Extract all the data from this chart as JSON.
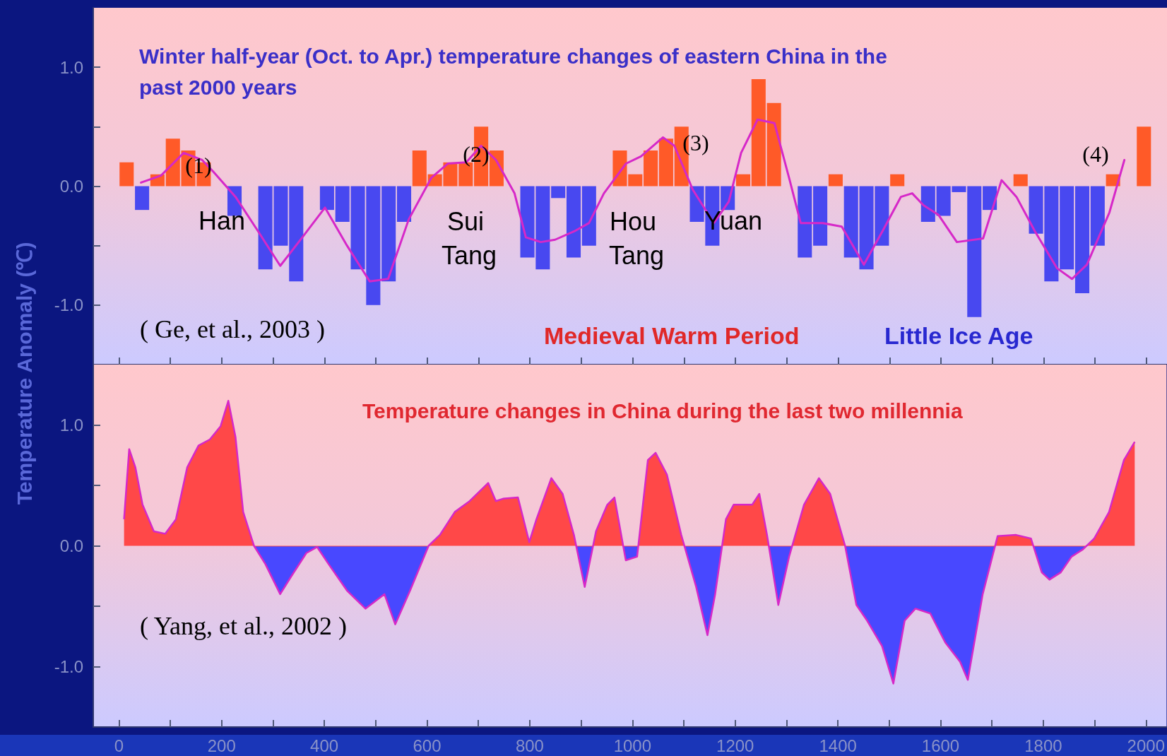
{
  "chart_data": [
    {
      "type": "bar",
      "title": "Winter half-year (Oct. to Apr.) temperature changes of eastern China in the past 2000 years",
      "ylabel": "Temperature Anomaly (℃)",
      "x": [
        15,
        45,
        75,
        105,
        135,
        165,
        195,
        225,
        255,
        285,
        315,
        345,
        375,
        405,
        435,
        465,
        495,
        525,
        555,
        585,
        615,
        645,
        675,
        705,
        735,
        765,
        795,
        825,
        855,
        885,
        915,
        945,
        975,
        1005,
        1035,
        1065,
        1095,
        1125,
        1155,
        1185,
        1215,
        1245,
        1275,
        1305,
        1335,
        1365,
        1395,
        1425,
        1455,
        1485,
        1515,
        1545,
        1575,
        1605,
        1635,
        1665,
        1695,
        1725,
        1755,
        1785,
        1815,
        1845,
        1875,
        1905,
        1935,
        1965,
        1995
      ],
      "series": [
        {
          "values": [
            0.2,
            -0.2,
            0.1,
            0.4,
            0.3,
            0.2,
            0,
            -0.25,
            0,
            -0.7,
            -0.5,
            -0.8,
            0,
            -0.2,
            -0.3,
            -0.7,
            -1.0,
            -0.8,
            -0.3,
            0.3,
            0.1,
            0.2,
            0.2,
            0.5,
            0.3,
            0,
            -0.6,
            -0.7,
            -0.1,
            -0.6,
            -0.5,
            0,
            0.3,
            0.1,
            0.3,
            0.4,
            0.5,
            -0.3,
            -0.5,
            -0.2,
            0.1,
            0.9,
            0.7,
            0,
            -0.6,
            -0.5,
            0.1,
            -0.6,
            -0.7,
            -0.5,
            0.1,
            0,
            -0.3,
            -0.25,
            -0.05,
            -1.1,
            -0.2,
            0,
            0.1,
            -0.4,
            -0.8,
            -0.7,
            -0.9,
            -0.5,
            0.1,
            0,
            0.5
          ],
          "colors": [
            "#ff5a28",
            "#4848f0",
            "#ff5a28",
            "#ff5a28",
            "#ff5a28",
            "#ff5a28",
            "#ff5a28",
            "#4848f0",
            "#ff5a28",
            "#4848f0",
            "#4848f0",
            "#4848f0",
            "#ff5a28",
            "#4848f0",
            "#4848f0",
            "#4848f0",
            "#4848f0",
            "#4848f0",
            "#4848f0",
            "#ff5a28",
            "#ff5a28",
            "#ff5a28",
            "#ff5a28",
            "#ff5a28",
            "#ff5a28",
            "#ff5a28",
            "#4848f0",
            "#4848f0",
            "#4848f0",
            "#4848f0",
            "#4848f0",
            "#ff5a28",
            "#ff5a28",
            "#ff5a28",
            "#ff5a28",
            "#ff5a28",
            "#ff5a28",
            "#4848f0",
            "#4848f0",
            "#4848f0",
            "#ff5a28",
            "#ff5a28",
            "#ff5a28",
            "#ff5a28",
            "#4848f0",
            "#4848f0",
            "#ff5a28",
            "#4848f0",
            "#4848f0",
            "#4848f0",
            "#ff5a28",
            "#ff5a28",
            "#4848f0",
            "#4848f0",
            "#4848f0",
            "#4848f0",
            "#4848f0",
            "#ff5a28",
            "#ff5a28",
            "#4848f0",
            "#4848f0",
            "#4848f0",
            "#4848f0",
            "#4848f0",
            "#ff5a28",
            "#ff5a28",
            "#ff5a28"
          ]
        },
        {
          "type": "line",
          "color": "#d628c8",
          "x": [
            43,
            82,
            126,
            162,
            184,
            227,
            271,
            314,
            357,
            401,
            444,
            488,
            524,
            564,
            608,
            640,
            676,
            705,
            734,
            770,
            792,
            821,
            849,
            886,
            915,
            944,
            987,
            1016,
            1059,
            1081,
            1117,
            1158,
            1187,
            1211,
            1243,
            1276,
            1305,
            1327,
            1370,
            1407,
            1450,
            1486,
            1522,
            1544,
            1566,
            1595,
            1631,
            1682,
            1718,
            1747,
            1783,
            1826,
            1855,
            1884,
            1928,
            1957
          ],
          "values": [
            0.03,
            0.09,
            0.28,
            0.22,
            0.12,
            -0.09,
            -0.38,
            -0.67,
            -0.43,
            -0.18,
            -0.5,
            -0.8,
            -0.78,
            -0.28,
            0.07,
            0.19,
            0.2,
            0.34,
            0.22,
            -0.06,
            -0.43,
            -0.47,
            -0.45,
            -0.38,
            -0.31,
            -0.06,
            0.19,
            0.25,
            0.41,
            0.34,
            -0.03,
            -0.31,
            -0.13,
            0.28,
            0.56,
            0.53,
            0.06,
            -0.31,
            -0.31,
            -0.34,
            -0.66,
            -0.38,
            -0.09,
            -0.06,
            -0.16,
            -0.24,
            -0.47,
            -0.44,
            0.05,
            -0.09,
            -0.38,
            -0.69,
            -0.78,
            -0.66,
            -0.22,
            0.22
          ]
        }
      ],
      "annotations": [
        "( Ge, et al., 2003 )",
        "Medieval Warm Period",
        "Little Ice Age",
        "(1)",
        "Han",
        "(2)",
        "Sui Tang",
        "(3)",
        "Hou Tang",
        "Yuan",
        "(4)"
      ],
      "xlim": [
        -50,
        2040
      ],
      "xticks": [
        {
          "value": 0,
          "label": null
        },
        {
          "value": 100,
          "label": null
        },
        {
          "value": 200,
          "label": null
        },
        {
          "value": 300,
          "label": null
        },
        {
          "value": 400,
          "label": null
        },
        {
          "value": 500,
          "label": null
        },
        {
          "value": 600,
          "label": null
        },
        {
          "value": 700,
          "label": null
        },
        {
          "value": 800,
          "label": null
        },
        {
          "value": 900,
          "label": null
        },
        {
          "value": 1000,
          "label": null
        },
        {
          "value": 1100,
          "label": null
        },
        {
          "value": 1200,
          "label": null
        },
        {
          "value": 1300,
          "label": null
        },
        {
          "value": 1400,
          "label": null
        },
        {
          "value": 1500,
          "label": null
        },
        {
          "value": 1600,
          "label": null
        },
        {
          "value": 1700,
          "label": null
        },
        {
          "value": 1800,
          "label": null
        },
        {
          "value": 1900,
          "label": null
        },
        {
          "value": 2000,
          "label": null
        }
      ],
      "ylim": [
        -1.5,
        1.5
      ],
      "yticks": [
        {
          "value": -1,
          "label": "-1.0"
        },
        {
          "value": -0.5,
          "label": null
        },
        {
          "value": 0,
          "label": "0.0"
        },
        {
          "value": 0.5,
          "label": null
        },
        {
          "value": 1,
          "label": "1.0"
        }
      ],
      "tick_labels": "y",
      "grid": false,
      "marker": "none"
    },
    {
      "type": "area",
      "title": "Temperature changes in China during the last two millennia",
      "series": [
        {
          "color": "#d628c8",
          "colors": [
            "#ff4848",
            "#ff4848",
            "#ff4848",
            "#ff4848",
            "#ff4848",
            "#ff4848",
            "#ff4848",
            "#ff4848",
            "#ff4848",
            "#ff4848",
            "#ff4848",
            "#ff4848",
            "#ff4848",
            "#ff4848",
            "#ff4848",
            "#4848ff",
            "#4848ff",
            "#4848ff",
            "#4848ff",
            "#4848ff",
            "#4848ff",
            "#4848ff",
            "#4848ff",
            "#4848ff",
            "#4848ff",
            "#4848ff",
            "#ff4848",
            "#ff4848",
            "#ff4848",
            "#ff4848",
            "#ff4848",
            "#ff4848",
            "#ff4848",
            "#ff4848",
            "#ff4848",
            "#ff4848",
            "#ff4848",
            "#ff4848",
            "#ff4848",
            "#4848ff",
            "#ff4848",
            "#ff4848",
            "#ff4848",
            "#4848ff",
            "#4848ff",
            "#ff4848",
            "#ff4848",
            "#ff4848",
            "#ff4848",
            "#4848ff",
            "#4848ff",
            "#4848ff",
            "#ff4848",
            "#ff4848",
            "#ff4848",
            "#ff4848",
            "#ff4848",
            "#4848ff",
            "#4848ff",
            "#ff4848",
            "#ff4848",
            "#ff4848",
            "#ff4848",
            "#4848ff",
            "#4848ff",
            "#4848ff",
            "#4848ff",
            "#4848ff",
            "#4848ff",
            "#4848ff",
            "#4848ff",
            "#4848ff",
            "#4848ff",
            "#4848ff",
            "#ff4848",
            "#ff4848",
            "#ff4848",
            "#4848ff",
            "#4848ff",
            "#4848ff",
            "#4848ff",
            "#4848ff",
            "#ff4848",
            "#ff4848",
            "#ff4848",
            "#ff4848"
          ],
          "x": [
            10,
            20,
            32,
            46,
            68,
            90,
            111,
            133,
            155,
            177,
            198,
            213,
            227,
            242,
            263,
            285,
            314,
            336,
            365,
            386,
            408,
            444,
            480,
            517,
            538,
            567,
            603,
            625,
            654,
            683,
            719,
            734,
            748,
            777,
            799,
            813,
            842,
            864,
            886,
            907,
            929,
            951,
            965,
            987,
            1009,
            1030,
            1045,
            1067,
            1095,
            1124,
            1146,
            1161,
            1182,
            1197,
            1233,
            1247,
            1262,
            1284,
            1305,
            1334,
            1363,
            1385,
            1414,
            1436,
            1457,
            1486,
            1508,
            1530,
            1551,
            1580,
            1609,
            1638,
            1653,
            1682,
            1711,
            1747,
            1776,
            1797,
            1812,
            1834,
            1855,
            1877,
            1899,
            1928,
            1957,
            1978
          ],
          "values": [
            0.22,
            0.8,
            0.65,
            0.34,
            0.12,
            0.1,
            0.22,
            0.65,
            0.83,
            0.88,
            0.99,
            1.2,
            0.9,
            0.28,
            0,
            -0.15,
            -0.4,
            -0.25,
            -0.06,
            -0.01,
            -0.15,
            -0.37,
            -0.52,
            -0.4,
            -0.65,
            -0.37,
            0,
            0.09,
            0.28,
            0.37,
            0.52,
            0.37,
            0.39,
            0.4,
            0.03,
            0.22,
            0.56,
            0.43,
            0.09,
            -0.34,
            0.12,
            0.34,
            0.4,
            -0.12,
            -0.09,
            0.71,
            0.77,
            0.59,
            0.09,
            -0.34,
            -0.74,
            -0.4,
            0.22,
            0.34,
            0.34,
            0.43,
            0.09,
            -0.49,
            -0.09,
            0.34,
            0.56,
            0.43,
            0,
            -0.49,
            -0.62,
            -0.83,
            -1.14,
            -0.62,
            -0.52,
            -0.56,
            -0.8,
            -0.96,
            -1.11,
            -0.4,
            0.08,
            0.09,
            0.06,
            -0.22,
            -0.28,
            -0.22,
            -0.09,
            -0.03,
            0.06,
            0.28,
            0.71,
            0.86
          ]
        }
      ],
      "annotations": [
        "( Yang, et al., 2002 )"
      ],
      "xlim": [
        -50,
        2040
      ],
      "xticks": [
        0,
        {
          "value": 100,
          "label": null
        },
        200,
        {
          "value": 300,
          "label": null
        },
        400,
        {
          "value": 500,
          "label": null
        },
        600,
        {
          "value": 700,
          "label": null
        },
        800,
        {
          "value": 900,
          "label": null
        },
        1000,
        {
          "value": 1100,
          "label": null
        },
        1200,
        {
          "value": 1300,
          "label": null
        },
        1400,
        {
          "value": 1500,
          "label": null
        },
        1600,
        {
          "value": 1700,
          "label": null
        },
        1800,
        {
          "value": 1900,
          "label": null
        },
        2000
      ],
      "ylim": [
        -1.5,
        1.5
      ],
      "yticks": [
        {
          "value": -1,
          "label": "-1.0"
        },
        {
          "value": -0.5,
          "label": null
        },
        {
          "value": 0,
          "label": "0.0"
        },
        {
          "value": 0.5,
          "label": null
        },
        {
          "value": 1,
          "label": "1.0"
        }
      ],
      "grid": false,
      "marker": "none"
    }
  ]
}
